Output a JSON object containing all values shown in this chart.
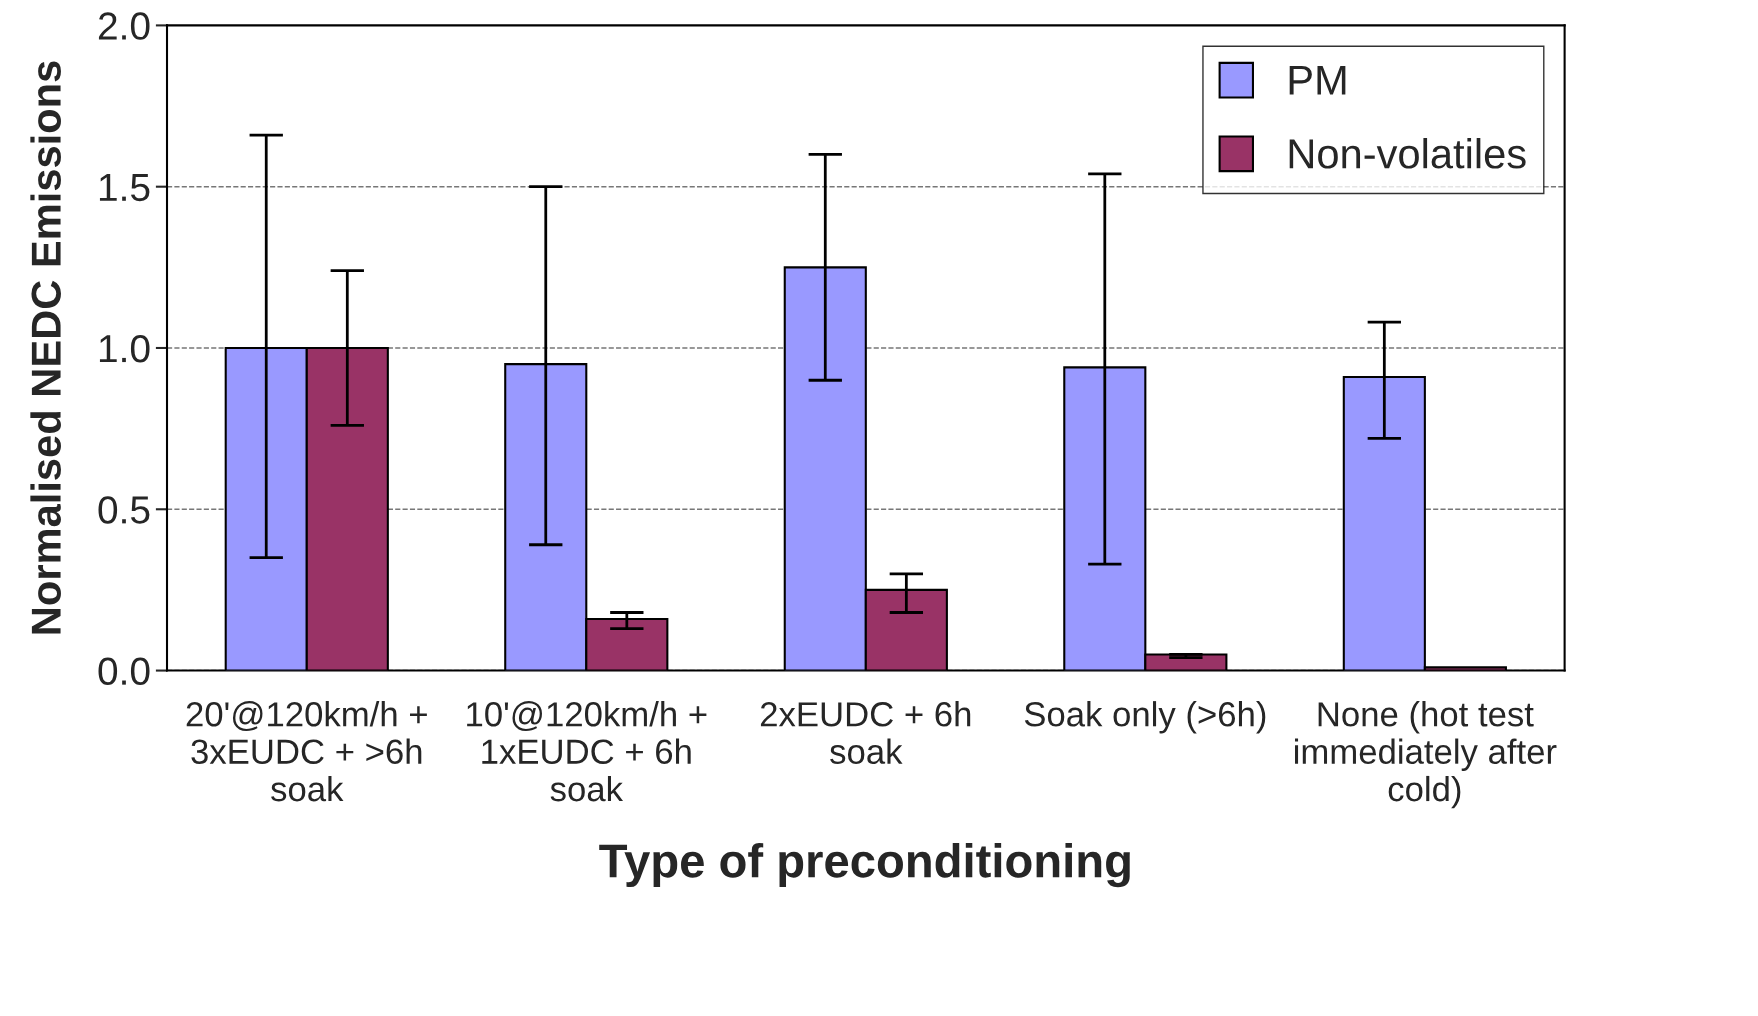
{
  "chart_data": {
    "type": "bar",
    "xlabel": "Type of preconditioning",
    "ylabel": "Normalised NEDC Emissions",
    "categories": [
      "20'@120km/h +\n3xEUDC + >6h\nsoak",
      "10'@120km/h +\n1xEUDC + 6h\nsoak",
      "2xEUDC + 6h\nsoak",
      "Soak only (>6h)",
      "None (hot test\nimmediately after\ncold)"
    ],
    "series": [
      {
        "name": "PM",
        "color": "#9999ff",
        "values": [
          1.0,
          0.95,
          1.25,
          0.94,
          0.91
        ],
        "errors": [
          [
            0.35,
            1.66
          ],
          [
            0.39,
            1.5
          ],
          [
            0.9,
            1.6
          ],
          [
            0.33,
            1.54
          ],
          [
            0.72,
            1.08
          ]
        ]
      },
      {
        "name": "Non-volatiles",
        "color": "#993366",
        "values": [
          1.0,
          0.16,
          0.25,
          0.05,
          0.01
        ],
        "errors": [
          [
            0.76,
            1.24
          ],
          [
            0.13,
            0.18
          ],
          [
            0.18,
            0.3
          ],
          [
            0.04,
            0.05
          ],
          null
        ]
      }
    ],
    "ylim": [
      0,
      2.0
    ],
    "yticks": [
      {
        "value": 0,
        "label": "0.0"
      },
      {
        "value": 0.5,
        "label": "0.5"
      },
      {
        "value": 1.0,
        "label": "1.0"
      },
      {
        "value": 1.5,
        "label": "1.5"
      },
      {
        "value": 2.0,
        "label": "2.0"
      }
    ],
    "grid": "y",
    "legend": "top right"
  }
}
